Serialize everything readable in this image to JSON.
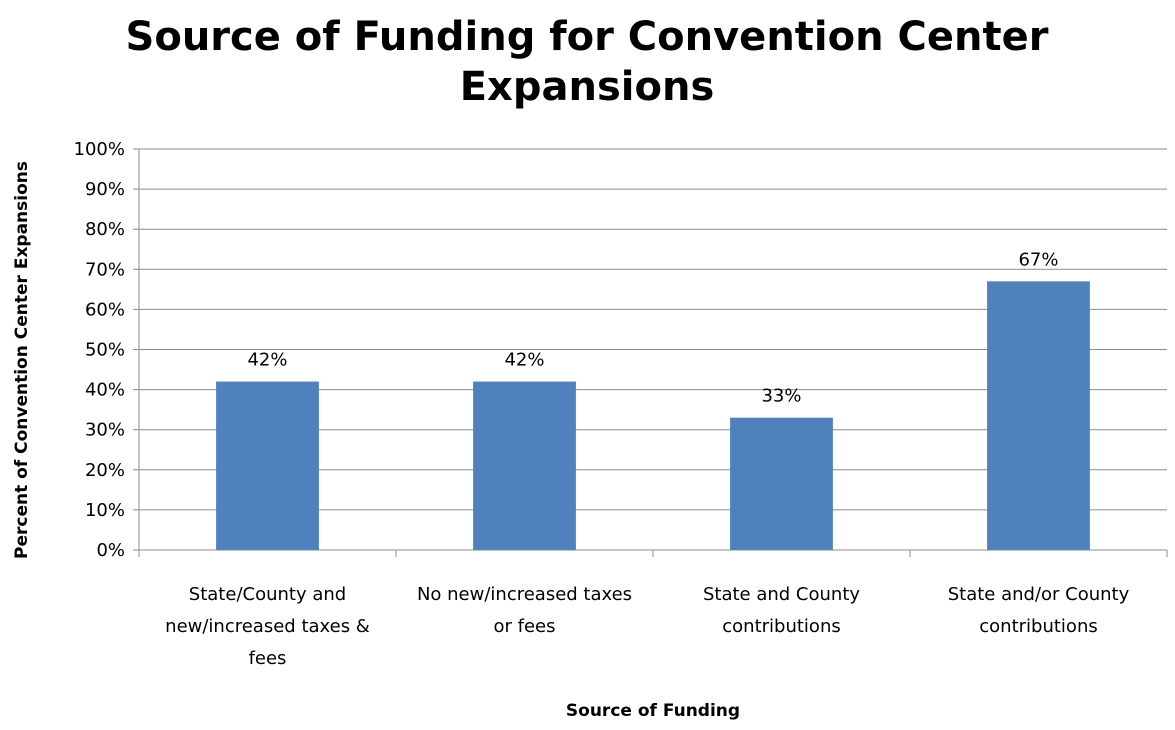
{
  "chart_data": {
    "type": "bar",
    "title": "Source of Funding for Convention Center Expansions",
    "title_lines": [
      "Source of Funding for Convention Center",
      "Expansions"
    ],
    "xlabel": "Source of Funding",
    "ylabel": "Percent of Convention Center Expansions",
    "categories": [
      "State/County and new/increased taxes & fees",
      "No new/increased taxes or fees",
      "State and County contributions",
      "State and/or County contributions"
    ],
    "category_lines": [
      [
        "State/County and",
        "new/increased taxes &",
        "fees"
      ],
      [
        "No new/increased taxes",
        "or fees"
      ],
      [
        "State and County",
        "contributions"
      ],
      [
        "State and/or County",
        "contributions"
      ]
    ],
    "values": [
      42,
      42,
      33,
      67
    ],
    "data_labels": [
      "42%",
      "42%",
      "33%",
      "67%"
    ],
    "ylim": [
      0,
      100
    ],
    "y_ticks": [
      0,
      10,
      20,
      30,
      40,
      50,
      60,
      70,
      80,
      90,
      100
    ],
    "y_tick_labels": [
      "0%",
      "10%",
      "20%",
      "30%",
      "40%",
      "50%",
      "60%",
      "70%",
      "80%",
      "90%",
      "100%"
    ],
    "grid": true,
    "legend": "none",
    "colors": {
      "bar": "#4f81bd",
      "grid": "#8c8c8c",
      "axis": "#8c8c8c"
    }
  }
}
